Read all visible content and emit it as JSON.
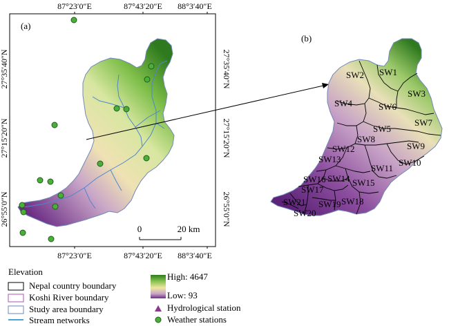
{
  "panels": {
    "a_label": "(a)",
    "b_label": "(b)"
  },
  "axes": {
    "top_ticks": [
      "87°23′0″E",
      "87°43′20″E",
      "88°3′40″E"
    ],
    "bottom_ticks": [
      "87°23′0″E",
      "87°43′20″E",
      "88°3′40″E"
    ],
    "left_ticks": [
      "27°35′40″N",
      "27°15′20″N",
      "26°55′0″N"
    ],
    "right_ticks": [
      "27°35′40″N",
      "27°15′20″N",
      "26°55′0″N"
    ]
  },
  "scale_bar": {
    "start": "0",
    "end": "20 km"
  },
  "subwatersheds": [
    "SW1",
    "SW2",
    "SW3",
    "SW4",
    "SW5",
    "SW6",
    "SW7",
    "SW8",
    "SW9",
    "SW10",
    "SW11",
    "SW12",
    "SW13",
    "SW14",
    "SW15",
    "SW16",
    "SW17",
    "SW18",
    "SW19",
    "SW20",
    "SW21"
  ],
  "legend": {
    "title": "Elevation",
    "items": [
      {
        "label": "Nepal country boundary",
        "color": "#000000"
      },
      {
        "label": "Koshi River boundary",
        "color": "#b04fb8"
      },
      {
        "label": "Study area boundary",
        "color": "#6f87b8"
      },
      {
        "label": "Stream networks",
        "color": "#4aa3d8"
      }
    ],
    "elevation_high": "High: 4647",
    "elevation_low": "Low: 93",
    "hydro_station": "Hydrological station",
    "weather_stations": "Weather stations"
  },
  "colors": {
    "high": "#2f7a1f",
    "mid": "#efe7a0",
    "low": "#6d2f86",
    "weather_station": "#4caf3a",
    "hydro_station": "#8a3a8c"
  }
}
